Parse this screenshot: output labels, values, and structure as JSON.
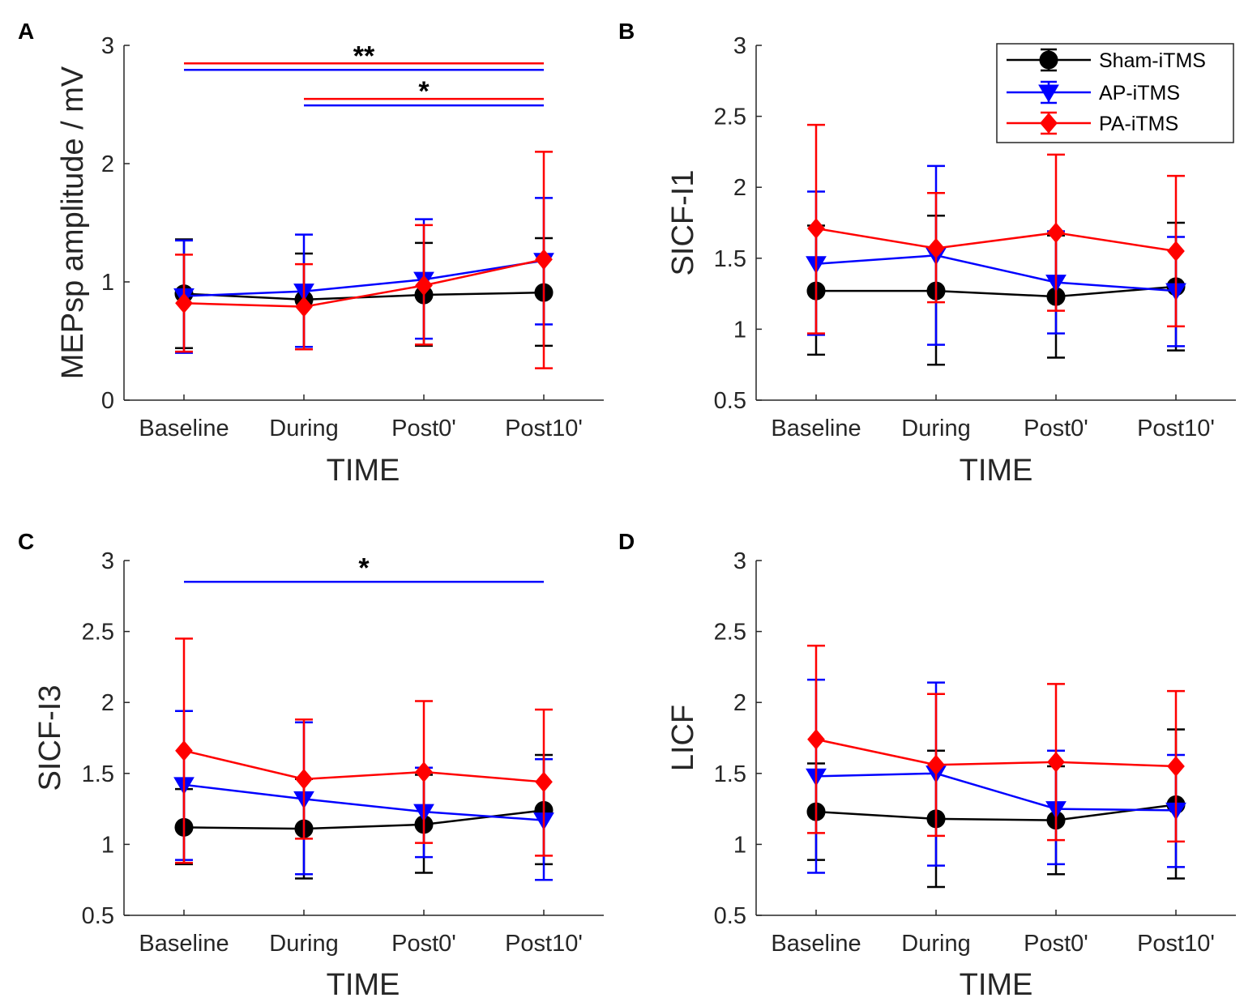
{
  "colors": {
    "Sham-iTMS": "#000000",
    "AP-iTMS": "#0000ff",
    "PA-iTMS": "#ff0000"
  },
  "legend": [
    "Sham-iTMS",
    "AP-iTMS",
    "PA-iTMS"
  ],
  "chart_data": [
    {
      "panel": "A",
      "type": "line",
      "categories": [
        "Baseline",
        "During",
        "Post0'",
        "Post10'"
      ],
      "xlabel": "TIME",
      "ylabel": "MEPsp amplitude / mV",
      "ylim": [
        0,
        3
      ],
      "yticks": [
        0,
        1,
        2,
        3
      ],
      "ytick_labels": [
        "0",
        "1",
        "2",
        "3"
      ],
      "series": [
        {
          "name": "Sham-iTMS",
          "marker": "circle",
          "values": [
            0.9,
            0.85,
            0.89,
            0.91
          ],
          "err_low": [
            0.44,
            0.45,
            0.46,
            0.46
          ],
          "err_high": [
            1.36,
            1.24,
            1.33,
            1.37
          ]
        },
        {
          "name": "AP-iTMS",
          "marker": "triangle-down",
          "values": [
            0.88,
            0.92,
            1.02,
            1.18
          ],
          "err_low": [
            0.4,
            0.45,
            0.52,
            0.64
          ],
          "err_high": [
            1.35,
            1.4,
            1.53,
            1.71
          ]
        },
        {
          "name": "PA-iTMS",
          "marker": "diamond",
          "values": [
            0.82,
            0.79,
            0.97,
            1.19
          ],
          "err_low": [
            0.41,
            0.43,
            0.47,
            0.27
          ],
          "err_high": [
            1.23,
            1.15,
            1.48,
            2.1
          ]
        }
      ],
      "significance": [
        {
          "label": "**",
          "from": "Baseline",
          "to": "Post10'",
          "y": 2.82,
          "groups": [
            "PA-iTMS",
            "AP-iTMS"
          ]
        },
        {
          "label": "*",
          "from": "During",
          "to": "Post10'",
          "y": 2.52,
          "groups": [
            "PA-iTMS",
            "AP-iTMS"
          ]
        }
      ]
    },
    {
      "panel": "B",
      "type": "line",
      "categories": [
        "Baseline",
        "During",
        "Post0'",
        "Post10'"
      ],
      "xlabel": "TIME",
      "ylabel": "SICF-I1",
      "ylim": [
        0.5,
        3
      ],
      "yticks": [
        0.5,
        1,
        1.5,
        2,
        2.5,
        3
      ],
      "ytick_labels": [
        "0.5",
        "1",
        "1.5",
        "2",
        "2.5",
        "3"
      ],
      "series": [
        {
          "name": "Sham-iTMS",
          "marker": "circle",
          "values": [
            1.27,
            1.27,
            1.23,
            1.3
          ],
          "err_low": [
            0.82,
            0.75,
            0.8,
            0.85
          ],
          "err_high": [
            1.73,
            1.8,
            1.66,
            1.75
          ]
        },
        {
          "name": "AP-iTMS",
          "marker": "triangle-down",
          "values": [
            1.46,
            1.52,
            1.33,
            1.27
          ],
          "err_low": [
            0.96,
            0.89,
            0.97,
            0.88
          ],
          "err_high": [
            1.97,
            2.15,
            1.69,
            1.65
          ]
        },
        {
          "name": "PA-iTMS",
          "marker": "diamond",
          "values": [
            1.71,
            1.57,
            1.68,
            1.55
          ],
          "err_low": [
            0.97,
            1.19,
            1.13,
            1.02
          ],
          "err_high": [
            2.44,
            1.96,
            2.23,
            2.08
          ]
        }
      ],
      "significance": [],
      "show_legend": true,
      "legend_position": "top-right"
    },
    {
      "panel": "C",
      "type": "line",
      "categories": [
        "Baseline",
        "During",
        "Post0'",
        "Post10'"
      ],
      "xlabel": "TIME",
      "ylabel": "SICF-I3",
      "ylim": [
        0.5,
        3
      ],
      "yticks": [
        0.5,
        1,
        1.5,
        2,
        2.5,
        3
      ],
      "ytick_labels": [
        "0.5",
        "1",
        "1.5",
        "2",
        "2.5",
        "3"
      ],
      "series": [
        {
          "name": "Sham-iTMS",
          "marker": "circle",
          "values": [
            1.12,
            1.11,
            1.14,
            1.24
          ],
          "err_low": [
            0.86,
            0.76,
            0.8,
            0.86
          ],
          "err_high": [
            1.39,
            1.46,
            1.49,
            1.63
          ]
        },
        {
          "name": "AP-iTMS",
          "marker": "triangle-down",
          "values": [
            1.42,
            1.32,
            1.23,
            1.17
          ],
          "err_low": [
            0.89,
            0.79,
            0.91,
            0.75
          ],
          "err_high": [
            1.94,
            1.86,
            1.54,
            1.6
          ]
        },
        {
          "name": "PA-iTMS",
          "marker": "diamond",
          "values": [
            1.66,
            1.46,
            1.51,
            1.44
          ],
          "err_low": [
            0.87,
            1.04,
            1.01,
            0.92
          ],
          "err_high": [
            2.45,
            1.88,
            2.01,
            1.95
          ]
        }
      ],
      "significance": [
        {
          "label": "*",
          "from": "Baseline",
          "to": "Post10'",
          "y": 2.85,
          "groups": [
            "AP-iTMS"
          ]
        }
      ]
    },
    {
      "panel": "D",
      "type": "line",
      "categories": [
        "Baseline",
        "During",
        "Post0'",
        "Post10'"
      ],
      "xlabel": "TIME",
      "ylabel": "LICF",
      "ylim": [
        0.5,
        3
      ],
      "yticks": [
        0.5,
        1,
        1.5,
        2,
        2.5,
        3
      ],
      "ytick_labels": [
        "0.5",
        "1",
        "1.5",
        "2",
        "2.5",
        "3"
      ],
      "series": [
        {
          "name": "Sham-iTMS",
          "marker": "circle",
          "values": [
            1.23,
            1.18,
            1.17,
            1.28
          ],
          "err_low": [
            0.89,
            0.7,
            0.79,
            0.76
          ],
          "err_high": [
            1.57,
            1.66,
            1.55,
            1.81
          ]
        },
        {
          "name": "AP-iTMS",
          "marker": "triangle-down",
          "values": [
            1.48,
            1.5,
            1.25,
            1.24
          ],
          "err_low": [
            0.8,
            0.85,
            0.86,
            0.84
          ],
          "err_high": [
            2.16,
            2.14,
            1.66,
            1.63
          ]
        },
        {
          "name": "PA-iTMS",
          "marker": "diamond",
          "values": [
            1.74,
            1.56,
            1.58,
            1.55
          ],
          "err_low": [
            1.08,
            1.06,
            1.03,
            1.02
          ],
          "err_high": [
            2.4,
            2.06,
            2.13,
            2.08
          ]
        }
      ],
      "significance": []
    }
  ]
}
